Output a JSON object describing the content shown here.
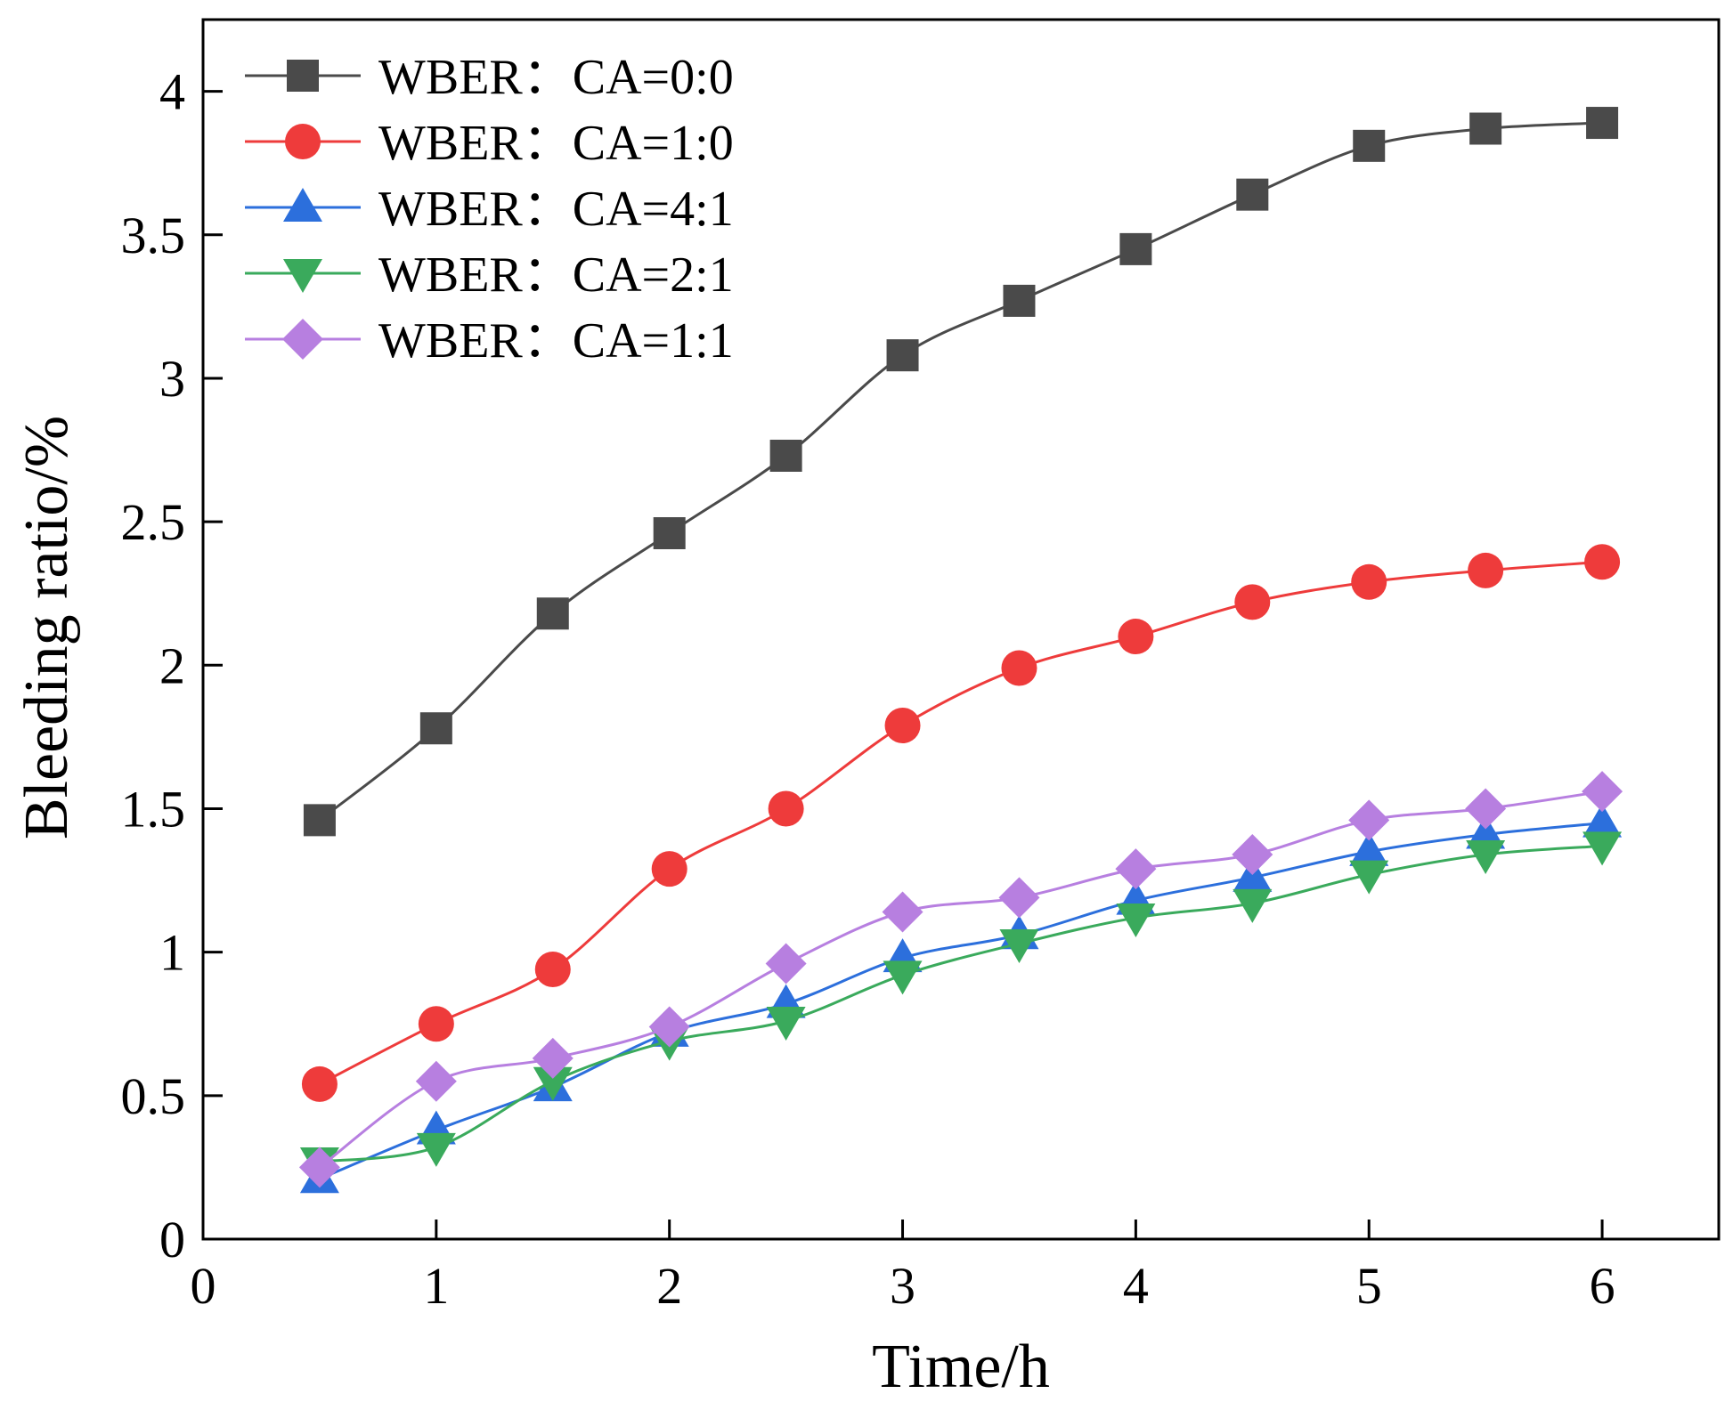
{
  "chart_data": {
    "type": "line",
    "title": "",
    "xlabel": "Time/h",
    "ylabel": "Bleeding ratio/%",
    "xlim": [
      0,
      6.5
    ],
    "ylim": [
      0,
      4.25
    ],
    "xticks": [
      0,
      1,
      2,
      3,
      4,
      5,
      6
    ],
    "xtick_labels": [
      "0",
      "1",
      "2",
      "3",
      "4",
      "5",
      "6"
    ],
    "yticks": [
      0,
      0.5,
      1,
      1.5,
      2,
      2.5,
      3,
      3.5,
      4
    ],
    "ytick_labels": [
      "0",
      "0.5",
      "1",
      "1.5",
      "2",
      "2.5",
      "3",
      "3.5",
      "4"
    ],
    "grid": false,
    "legend_position": "top-left",
    "x": [
      0.5,
      1,
      1.5,
      2,
      2.5,
      3,
      3.5,
      4,
      4.5,
      5,
      5.5,
      6
    ],
    "series": [
      {
        "name": "WBER：CA=0:0",
        "color": "#4a4a4a",
        "marker": "square",
        "values": [
          1.46,
          1.78,
          2.18,
          2.46,
          2.73,
          3.08,
          3.27,
          3.45,
          3.64,
          3.81,
          3.87,
          3.89
        ]
      },
      {
        "name": "WBER：CA=1:0",
        "color": "#ee3b3b",
        "marker": "circle",
        "values": [
          0.54,
          0.75,
          0.94,
          1.29,
          1.5,
          1.79,
          1.99,
          2.1,
          2.22,
          2.29,
          2.33,
          2.36
        ]
      },
      {
        "name": "WBER：CA=4:1",
        "color": "#2c6fdc",
        "marker": "triangle-up",
        "values": [
          0.21,
          0.38,
          0.53,
          0.72,
          0.82,
          0.98,
          1.06,
          1.18,
          1.26,
          1.35,
          1.41,
          1.45
        ]
      },
      {
        "name": "WBER：CA=2:1",
        "color": "#3aaa5c",
        "marker": "triangle-down",
        "values": [
          0.27,
          0.32,
          0.55,
          0.69,
          0.76,
          0.92,
          1.03,
          1.12,
          1.17,
          1.27,
          1.34,
          1.37
        ]
      },
      {
        "name": "WBER：CA=1:1",
        "color": "#b77fe0",
        "marker": "diamond",
        "values": [
          0.25,
          0.55,
          0.63,
          0.74,
          0.96,
          1.14,
          1.19,
          1.29,
          1.34,
          1.46,
          1.5,
          1.56
        ]
      }
    ]
  }
}
